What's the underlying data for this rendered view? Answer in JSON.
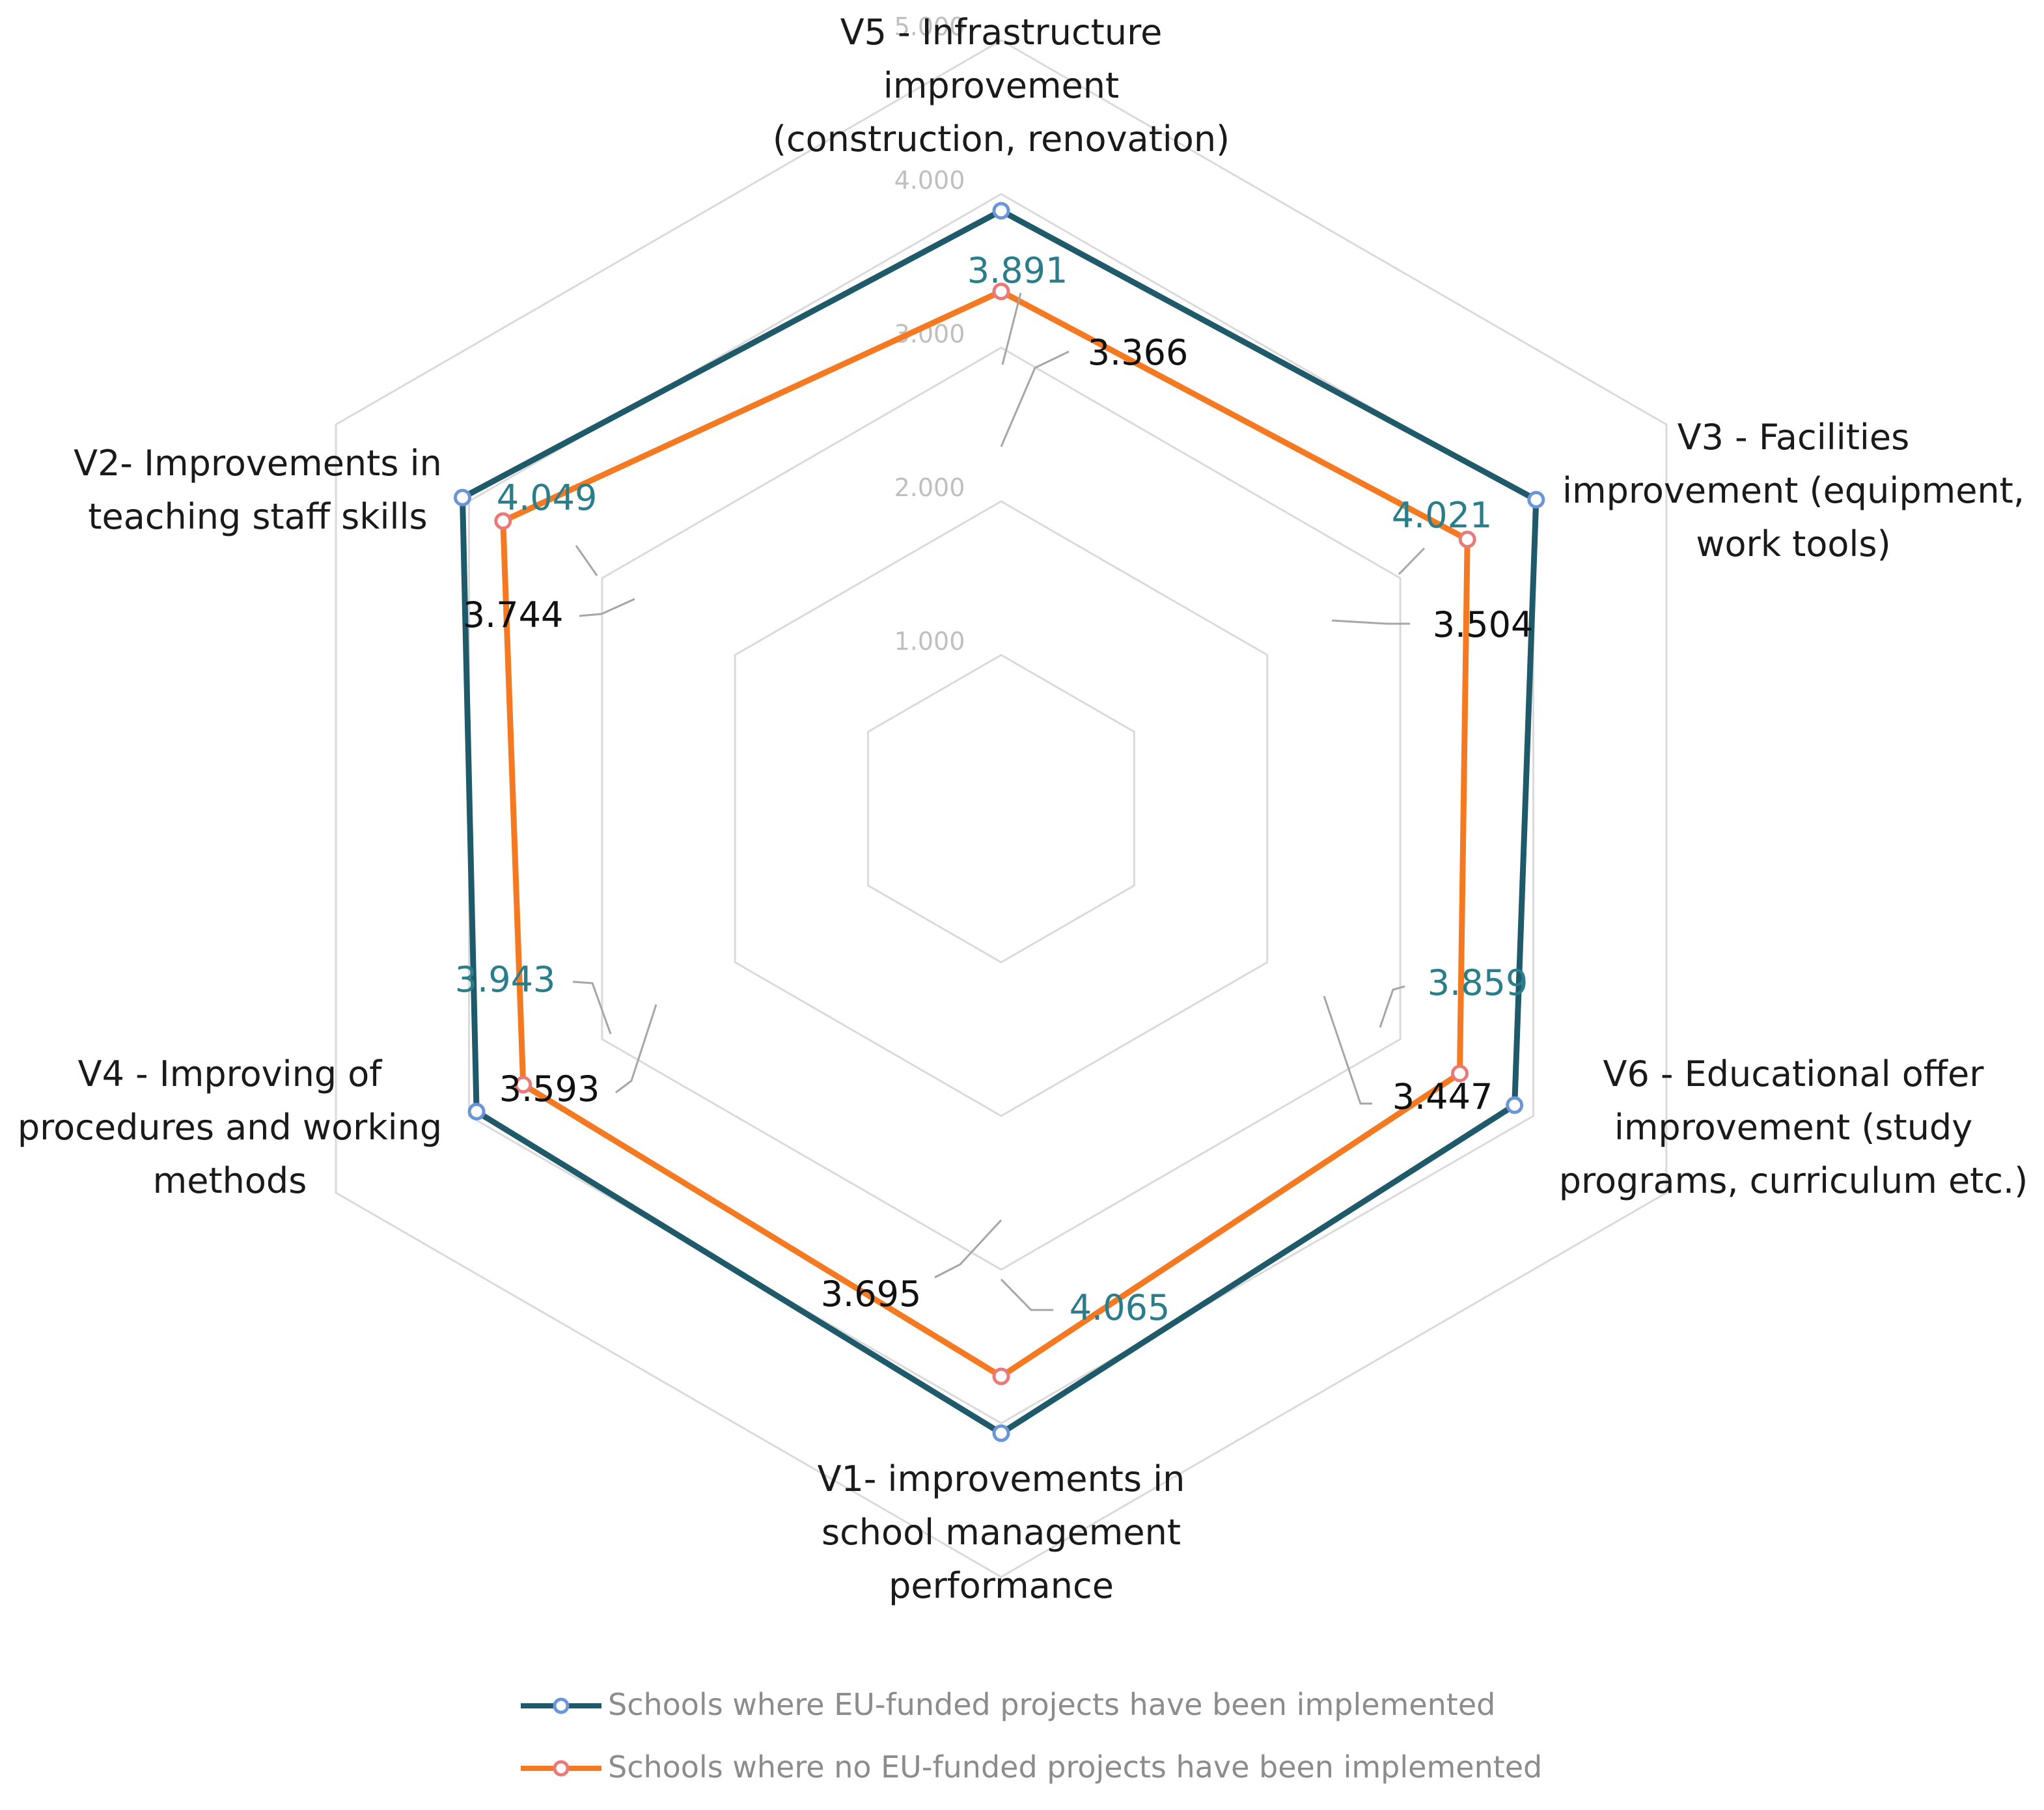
{
  "chart_data": {
    "type": "radar",
    "title": "",
    "range": [
      0,
      5
    ],
    "ticks": [
      "1.000",
      "2.000",
      "3.000",
      "4.000",
      "5.000"
    ],
    "tick_values": [
      1,
      2,
      3,
      4,
      5
    ],
    "axes": [
      {
        "id": "V5",
        "lines": [
          "V5 - Infrastructure",
          "improvement",
          "(construction, renovation)"
        ]
      },
      {
        "id": "V3",
        "lines": [
          "V3 - Facilities",
          "improvement (equipment,",
          "work tools)"
        ]
      },
      {
        "id": "V6",
        "lines": [
          "V6 - Educational offer",
          "improvement (study",
          "programs, curriculum etc.)"
        ]
      },
      {
        "id": "V1",
        "lines": [
          "V1- improvements in",
          "school management",
          "performance"
        ]
      },
      {
        "id": "V4",
        "lines": [
          "V4 - Improving of",
          "procedures and working",
          "methods"
        ]
      },
      {
        "id": "V2",
        "lines": [
          "V2- Improvements in",
          "teaching staff skills"
        ]
      }
    ],
    "series": [
      {
        "name": "Schools where EU-funded projects have been implemented",
        "line_color": "#1f5a6a",
        "marker_color": "#6a95d6",
        "label_color": "#2a7e8c",
        "values": [
          3.891,
          4.021,
          3.859,
          4.065,
          3.943,
          4.049
        ],
        "labels": [
          "3.891",
          "4.021",
          "3.859",
          "4.065",
          "3.943",
          "4.049"
        ]
      },
      {
        "name": "Schools where no EU-funded projects have been implemented",
        "line_color": "#f47920",
        "marker_color": "#e87a7a",
        "label_color": "#111111",
        "values": [
          3.366,
          3.504,
          3.447,
          3.695,
          3.593,
          3.744
        ],
        "labels": [
          "3.366",
          "3.504",
          "3.447",
          "3.695",
          "3.593",
          "3.744"
        ]
      }
    ],
    "legend_position": "bottom"
  }
}
